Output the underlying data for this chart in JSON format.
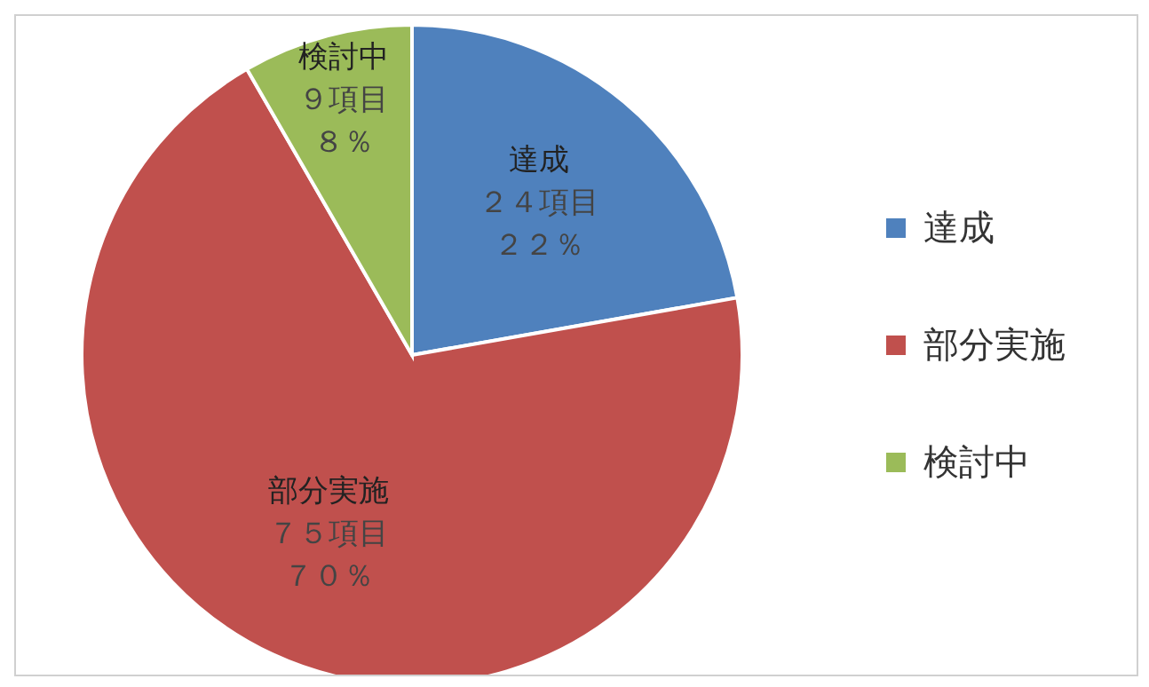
{
  "chart_data": {
    "type": "pie",
    "categories": [
      "達成",
      "部分実施",
      "検討中"
    ],
    "values": [
      24,
      75,
      9
    ],
    "value_labels": [
      "２４項目",
      "７５項目",
      "９項目"
    ],
    "annotations": [
      "２２％",
      "７０％",
      "８％"
    ],
    "colors": [
      "#4f81bd",
      "#c0504d",
      "#9bbb59"
    ],
    "legend": "right"
  }
}
